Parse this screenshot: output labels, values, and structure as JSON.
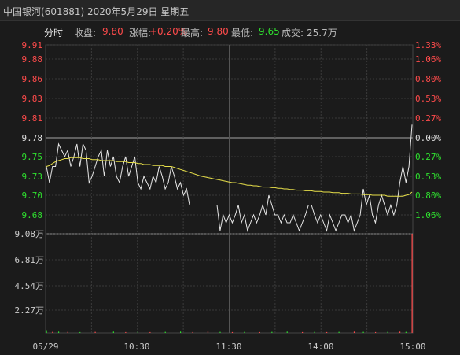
{
  "title": {
    "name": "中国银河",
    "code": "(601881)",
    "date": "2020年5月29日",
    "weekday": "星期五"
  },
  "info": {
    "mode": "分时",
    "close_label": "收盘:",
    "close_value": "9.80",
    "change_label": "涨幅:",
    "change_value": "+0.20%",
    "high_label": "最高:",
    "high_value": "9.80",
    "low_label": "最低:",
    "low_value": "9.65",
    "volume_label": "成交:",
    "volume_value": "25.7万"
  },
  "colors": {
    "up": "#ff4b4b",
    "down": "#2fe02f",
    "price_line": "#e6e6e6",
    "avg_line": "#e8e04a",
    "grid": "#3a3a3a"
  },
  "chart_data": [
    {
      "type": "line",
      "title": "",
      "xlabel": "",
      "ylabel": "",
      "x_ticks": [
        "05/29",
        "10:30",
        "11:30",
        "14:00",
        "15:00"
      ],
      "y_tick_labels": [
        "9.91",
        "9.88",
        "9.86",
        "9.83",
        "9.81",
        "9.78",
        "9.75",
        "9.73",
        "9.70",
        "9.68"
      ],
      "pct_tick_labels": [
        "1.33%",
        "1.06%",
        "0.80%",
        "0.53%",
        "0.27%",
        "0.00%",
        "0.27%",
        "0.53%",
        "0.80%",
        "1.06%"
      ],
      "ylim": [
        9.66,
        9.91
      ],
      "prev_close": 9.78,
      "total_points": 121,
      "series": [
        {
          "key": "price",
          "values": [
            9.74,
            9.72,
            9.74,
            9.74,
            9.77,
            9.76,
            9.75,
            9.76,
            9.74,
            9.75,
            9.77,
            9.74,
            9.77,
            9.76,
            9.72,
            9.73,
            9.74,
            9.75,
            9.76,
            9.73,
            9.76,
            9.74,
            9.75,
            9.73,
            9.72,
            9.74,
            9.75,
            9.73,
            9.74,
            9.75,
            9.72,
            9.71,
            9.73,
            9.72,
            9.71,
            9.73,
            9.72,
            9.74,
            9.73,
            9.71,
            9.72,
            9.74,
            9.73,
            9.71,
            9.72,
            9.7,
            9.71,
            9.69,
            9.69,
            9.69,
            9.69,
            9.69,
            9.69,
            9.69,
            9.69,
            9.69,
            9.69,
            9.66,
            9.68,
            9.67,
            9.68,
            9.67,
            9.68,
            9.69,
            9.67,
            9.68,
            9.66,
            9.67,
            9.68,
            9.67,
            9.68,
            9.69,
            9.68,
            9.7,
            9.69,
            9.68,
            9.68,
            9.67,
            9.68,
            9.67,
            9.67,
            9.68,
            9.67,
            9.66,
            9.67,
            9.68,
            9.69,
            9.69,
            9.68,
            9.67,
            9.68,
            9.67,
            9.66,
            9.68,
            9.67,
            9.66,
            9.67,
            9.68,
            9.68,
            9.67,
            9.68,
            9.66,
            9.67,
            9.68,
            9.71,
            9.69,
            9.7,
            9.68,
            9.67,
            9.69,
            9.7,
            9.69,
            9.68,
            9.69,
            9.68,
            9.69,
            9.72,
            9.74,
            9.72,
            9.74,
            9.8
          ]
        },
        {
          "key": "average",
          "values": [
            9.74,
            9.741,
            9.743,
            9.745,
            9.746,
            9.747,
            9.748,
            9.748,
            9.749,
            9.749,
            9.749,
            9.749,
            9.748,
            9.748,
            9.748,
            9.747,
            9.747,
            9.747,
            9.746,
            9.746,
            9.746,
            9.746,
            9.746,
            9.745,
            9.745,
            9.745,
            9.745,
            9.744,
            9.744,
            9.744,
            9.743,
            9.743,
            9.742,
            9.742,
            9.742,
            9.741,
            9.741,
            9.741,
            9.741,
            9.74,
            9.74,
            9.74,
            9.739,
            9.738,
            9.737,
            9.736,
            9.735,
            9.734,
            9.733,
            9.732,
            9.731,
            9.73,
            9.729,
            9.728,
            9.727,
            9.726,
            9.725,
            9.724,
            9.723,
            9.722,
            9.721,
            9.72,
            9.72,
            9.719,
            9.718,
            9.717,
            9.716,
            9.716,
            9.715,
            9.715,
            9.714,
            9.713,
            9.713,
            9.713,
            9.712,
            9.712,
            9.711,
            9.711,
            9.71,
            9.71,
            9.709,
            9.709,
            9.708,
            9.708,
            9.708,
            9.707,
            9.707,
            9.707,
            9.706,
            9.706,
            9.706,
            9.705,
            9.705,
            9.705,
            9.704,
            9.704,
            9.704,
            9.703,
            9.703,
            9.703,
            9.702,
            9.702,
            9.702,
            9.702,
            9.701,
            9.701,
            9.701,
            9.7,
            9.7,
            9.7,
            9.7,
            9.7,
            9.699,
            9.699,
            9.699,
            9.699,
            9.699,
            9.699,
            9.7,
            9.701,
            9.705
          ]
        }
      ]
    },
    {
      "type": "bar",
      "title": "",
      "y_tick_labels": [
        "9.08万",
        "6.81万",
        "4.54万",
        "2.27万"
      ],
      "ylim": [
        0,
        9.08
      ],
      "unit": "万",
      "bars": [
        {
          "i": 0,
          "v": 0.25,
          "up": false
        },
        {
          "i": 2,
          "v": 0.1,
          "up": true
        },
        {
          "i": 4,
          "v": 0.12,
          "up": false
        },
        {
          "i": 7,
          "v": 0.1,
          "up": true
        },
        {
          "i": 11,
          "v": 0.08,
          "up": false
        },
        {
          "i": 16,
          "v": 0.1,
          "up": true
        },
        {
          "i": 22,
          "v": 0.12,
          "up": false
        },
        {
          "i": 26,
          "v": 0.08,
          "up": true
        },
        {
          "i": 30,
          "v": 0.1,
          "up": false
        },
        {
          "i": 34,
          "v": 0.08,
          "up": true
        },
        {
          "i": 39,
          "v": 0.1,
          "up": false
        },
        {
          "i": 44,
          "v": 0.12,
          "up": false
        },
        {
          "i": 48,
          "v": 0.08,
          "up": true
        },
        {
          "i": 53,
          "v": 0.2,
          "up": true
        },
        {
          "i": 57,
          "v": 0.1,
          "up": false
        },
        {
          "i": 61,
          "v": 0.08,
          "up": true
        },
        {
          "i": 65,
          "v": 0.1,
          "up": false
        },
        {
          "i": 70,
          "v": 0.08,
          "up": true
        },
        {
          "i": 74,
          "v": 0.1,
          "up": false
        },
        {
          "i": 79,
          "v": 0.12,
          "up": false
        },
        {
          "i": 84,
          "v": 0.08,
          "up": true
        },
        {
          "i": 88,
          "v": 0.1,
          "up": false
        },
        {
          "i": 92,
          "v": 0.08,
          "up": true
        },
        {
          "i": 96,
          "v": 0.1,
          "up": false
        },
        {
          "i": 101,
          "v": 0.12,
          "up": true
        },
        {
          "i": 104,
          "v": 0.1,
          "up": false
        },
        {
          "i": 108,
          "v": 0.08,
          "up": true
        },
        {
          "i": 112,
          "v": 0.1,
          "up": false
        },
        {
          "i": 116,
          "v": 0.12,
          "up": true
        },
        {
          "i": 118,
          "v": 0.1,
          "up": false
        },
        {
          "i": 120,
          "v": 9.08,
          "up": true
        }
      ]
    }
  ]
}
